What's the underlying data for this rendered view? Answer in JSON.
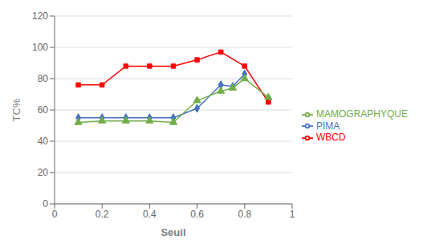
{
  "chart_data": {
    "type": "line",
    "xlabel": "Seuil",
    "ylabel": "TC%",
    "series": [
      {
        "name": "PIMA",
        "color": "#4472C4",
        "marker": "diamond",
        "x": [
          0.1,
          0.2,
          0.3,
          0.4,
          0.5,
          0.6,
          0.7,
          0.75,
          0.8
        ],
        "values": [
          55,
          55,
          55,
          55,
          55,
          61,
          76,
          75,
          83
        ]
      },
      {
        "name": "WBCD",
        "color": "#FF0000",
        "marker": "square",
        "x": [
          0.1,
          0.2,
          0.3,
          0.4,
          0.5,
          0.6,
          0.7,
          0.8,
          0.9
        ],
        "values": [
          76,
          76,
          88,
          88,
          88,
          92,
          97,
          88,
          65
        ]
      },
      {
        "name": "MAMOGRAPHYQUE",
        "color": "#70AD47",
        "marker": "triangle",
        "x": [
          0.1,
          0.2,
          0.3,
          0.4,
          0.5,
          0.6,
          0.7,
          0.75,
          0.8,
          0.9
        ],
        "values": [
          52,
          53,
          53,
          53,
          52,
          66,
          72,
          74,
          80,
          68
        ]
      }
    ],
    "xlim": [
      0,
      1
    ],
    "ylim": [
      0,
      120
    ],
    "xticks": [
      0,
      0.2,
      0.4,
      0.6,
      0.8,
      1
    ],
    "yticks": [
      0,
      20,
      40,
      60,
      80,
      100,
      120
    ],
    "grid": "y",
    "legend": "right"
  }
}
